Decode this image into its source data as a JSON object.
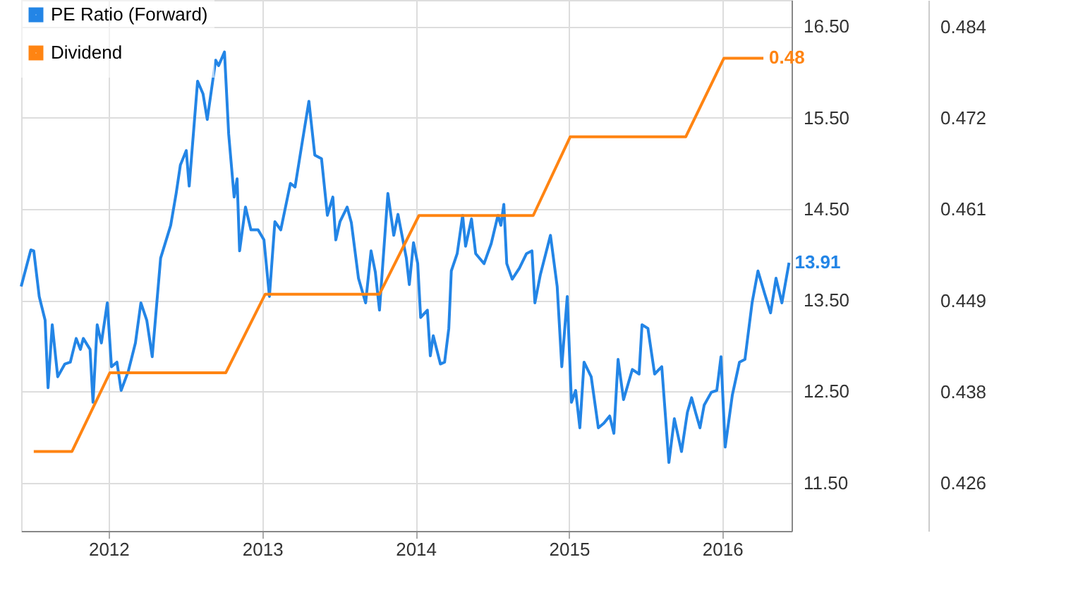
{
  "chart_data": {
    "type": "line",
    "xlim": [
      "2011-06-07",
      "2016-06-14"
    ],
    "xticks": [
      "2012",
      "2013",
      "2014",
      "2015",
      "2016"
    ],
    "ylim": [
      10.97,
      16.79
    ],
    "yticks": [
      {
        "value": 11.5,
        "label": "11.50"
      },
      {
        "value": 12.5,
        "label": "12.50"
      },
      {
        "value": 13.5,
        "label": "13.50"
      },
      {
        "value": 14.5,
        "label": "14.50"
      },
      {
        "value": 15.5,
        "label": "15.50"
      },
      {
        "value": 16.5,
        "label": "16.50"
      }
    ],
    "y2lim": [
      0.4199,
      0.4874
    ],
    "y2ticks": [
      {
        "value": 0.426,
        "label": "0.426"
      },
      {
        "value": 0.4376,
        "label": "0.438"
      },
      {
        "value": 0.4492,
        "label": "0.449"
      },
      {
        "value": 0.4608,
        "label": "0.461"
      },
      {
        "value": 0.4724,
        "label": "0.472"
      },
      {
        "value": 0.484,
        "label": "0.484"
      }
    ],
    "grid": true,
    "legend": "top left",
    "marker": "none",
    "line_style": "solid",
    "series": [
      {
        "name": "PE Ratio (Forward)",
        "color": "#2385e6",
        "axis": "y",
        "x": [
          "2011-06-07",
          "2011-06-30",
          "2011-07-07",
          "2011-07-20",
          "2011-08-03",
          "2011-08-10",
          "2011-08-20",
          "2011-09-02",
          "2011-09-19",
          "2011-10-02",
          "2011-10-16",
          "2011-10-26",
          "2011-11-02",
          "2011-11-18",
          "2011-11-25",
          "2011-12-05",
          "2011-12-15",
          "2011-12-29",
          "2012-01-08",
          "2012-01-21",
          "2012-01-31",
          "2012-02-17",
          "2012-03-05",
          "2012-03-18",
          "2012-04-01",
          "2012-04-14",
          "2012-05-04",
          "2012-05-28",
          "2012-06-10",
          "2012-06-20",
          "2012-07-04",
          "2012-07-11",
          "2012-07-31",
          "2012-08-13",
          "2012-08-23",
          "2012-09-12",
          "2012-09-19",
          "2012-10-03",
          "2012-10-13",
          "2012-10-26",
          "2012-11-02",
          "2012-11-08",
          "2012-11-22",
          "2012-12-05",
          "2012-12-22",
          "2013-01-05",
          "2013-01-18",
          "2013-01-31",
          "2013-02-14",
          "2013-03-09",
          "2013-03-20",
          "2013-04-05",
          "2013-04-22",
          "2013-05-06",
          "2013-05-22",
          "2013-06-05",
          "2013-06-18",
          "2013-06-25",
          "2013-07-05",
          "2013-07-22",
          "2013-08-01",
          "2013-08-18",
          "2013-09-04",
          "2013-09-17",
          "2013-09-27",
          "2013-10-07",
          "2013-10-27",
          "2013-11-10",
          "2013-11-20",
          "2013-12-10",
          "2013-12-17",
          "2013-12-27",
          "2014-01-06",
          "2014-01-13",
          "2014-01-29",
          "2014-02-05",
          "2014-02-12",
          "2014-03-01",
          "2014-03-11",
          "2014-03-21",
          "2014-03-27",
          "2014-04-10",
          "2014-04-23",
          "2014-04-30",
          "2014-05-14",
          "2014-05-24",
          "2014-06-13",
          "2014-06-30",
          "2014-07-16",
          "2014-07-23",
          "2014-07-30",
          "2014-08-06",
          "2014-08-19",
          "2014-09-05",
          "2014-09-22",
          "2014-10-05",
          "2014-10-12",
          "2014-10-25",
          "2014-11-18",
          "2014-12-04",
          "2014-12-15",
          "2014-12-28",
          "2015-01-07",
          "2015-01-17",
          "2015-01-27",
          "2015-02-06",
          "2015-02-23",
          "2015-03-12",
          "2015-03-25",
          "2015-04-08",
          "2015-04-18",
          "2015-04-28",
          "2015-05-11",
          "2015-06-01",
          "2015-06-17",
          "2015-06-24",
          "2015-07-08",
          "2015-07-24",
          "2015-08-10",
          "2015-08-27",
          "2015-09-09",
          "2015-09-26",
          "2015-10-10",
          "2015-10-20",
          "2015-10-30",
          "2015-11-09",
          "2015-11-19",
          "2015-12-06",
          "2015-12-19",
          "2015-12-29",
          "2016-01-08",
          "2016-01-25",
          "2016-02-11",
          "2016-02-24",
          "2016-03-12",
          "2016-03-26",
          "2016-04-11",
          "2016-04-25",
          "2016-05-08",
          "2016-05-22",
          "2016-06-08"
        ],
        "values": [
          13.65,
          14.05,
          14.04,
          13.54,
          13.28,
          12.54,
          13.23,
          12.66,
          12.8,
          12.82,
          13.08,
          12.96,
          13.08,
          12.96,
          12.38,
          13.23,
          13.03,
          13.47,
          12.77,
          12.82,
          12.51,
          12.72,
          13.03,
          13.47,
          13.28,
          12.88,
          13.96,
          14.32,
          14.67,
          14.98,
          15.14,
          14.75,
          15.9,
          15.76,
          15.48,
          16.13,
          16.07,
          16.22,
          15.32,
          14.63,
          14.83,
          14.04,
          14.52,
          14.27,
          14.27,
          14.16,
          13.54,
          14.36,
          14.27,
          14.78,
          14.74,
          15.2,
          15.68,
          15.09,
          15.05,
          14.43,
          14.63,
          14.16,
          14.36,
          14.52,
          14.35,
          13.74,
          13.47,
          14.04,
          13.81,
          13.39,
          14.67,
          14.21,
          14.44,
          13.96,
          13.67,
          14.13,
          13.9,
          13.31,
          13.39,
          12.89,
          13.11,
          12.8,
          12.82,
          13.19,
          13.82,
          14.01,
          14.43,
          14.09,
          14.39,
          14.01,
          13.9,
          14.12,
          14.43,
          14.32,
          14.55,
          13.9,
          13.73,
          13.85,
          14.01,
          14.04,
          13.47,
          13.78,
          14.21,
          13.65,
          12.77,
          13.54,
          12.38,
          12.51,
          12.1,
          12.82,
          12.66,
          12.1,
          12.15,
          12.23,
          12.04,
          12.85,
          12.41,
          12.74,
          12.69,
          13.23,
          13.19,
          12.69,
          12.77,
          11.72,
          12.2,
          11.84,
          12.27,
          12.43,
          12.26,
          12.1,
          12.35,
          12.49,
          12.51,
          12.88,
          11.89,
          12.46,
          12.82,
          12.85,
          13.47,
          13.82,
          13.57,
          13.36,
          13.74,
          13.47,
          13.91
        ],
        "value_labels": [
          null,
          null,
          null,
          null,
          null,
          null,
          null,
          null,
          null,
          null,
          null,
          null,
          null,
          null,
          null,
          null,
          null,
          null,
          null,
          null,
          null,
          null,
          null,
          null,
          null,
          null,
          null,
          null,
          null,
          null,
          null,
          null,
          null,
          null,
          null,
          null,
          null,
          null,
          null,
          null,
          null,
          null,
          null,
          null,
          null,
          null,
          null,
          null,
          null,
          null,
          null,
          null,
          null,
          null,
          null,
          null,
          null,
          null,
          null,
          null,
          null,
          null,
          null,
          null,
          null,
          null,
          null,
          null,
          null,
          null,
          null,
          null,
          null,
          null,
          null,
          null,
          null,
          null,
          null,
          null,
          null,
          null,
          null,
          null,
          null,
          null,
          null,
          null,
          null,
          null,
          null,
          null,
          null,
          null,
          null,
          null,
          null,
          null,
          null,
          null,
          null,
          null,
          null,
          null,
          null,
          null,
          null,
          null,
          null,
          null,
          null,
          null,
          null,
          null,
          null,
          null,
          null,
          null,
          null,
          null,
          null,
          null,
          null,
          null,
          null,
          null,
          null,
          null,
          null,
          null,
          null,
          null,
          null,
          null,
          null,
          null,
          null,
          null,
          null,
          null,
          "13.91"
        ]
      },
      {
        "name": "Dividend",
        "color": "#ff8412",
        "axis": "y2",
        "x": [
          "2011-07-07",
          "2011-10-06",
          "2012-01-04",
          "2012-10-06",
          "2013-01-08",
          "2013-10-07",
          "2014-01-09",
          "2014-10-08",
          "2015-01-04",
          "2015-10-06",
          "2016-01-05",
          "2016-04-08"
        ],
        "values": [
          0.43,
          0.43,
          0.44,
          0.44,
          0.45,
          0.45,
          0.46,
          0.46,
          0.47,
          0.47,
          0.48,
          0.48
        ],
        "value_labels": [
          null,
          null,
          null,
          null,
          null,
          null,
          null,
          null,
          null,
          null,
          null,
          "0.48"
        ]
      }
    ]
  }
}
